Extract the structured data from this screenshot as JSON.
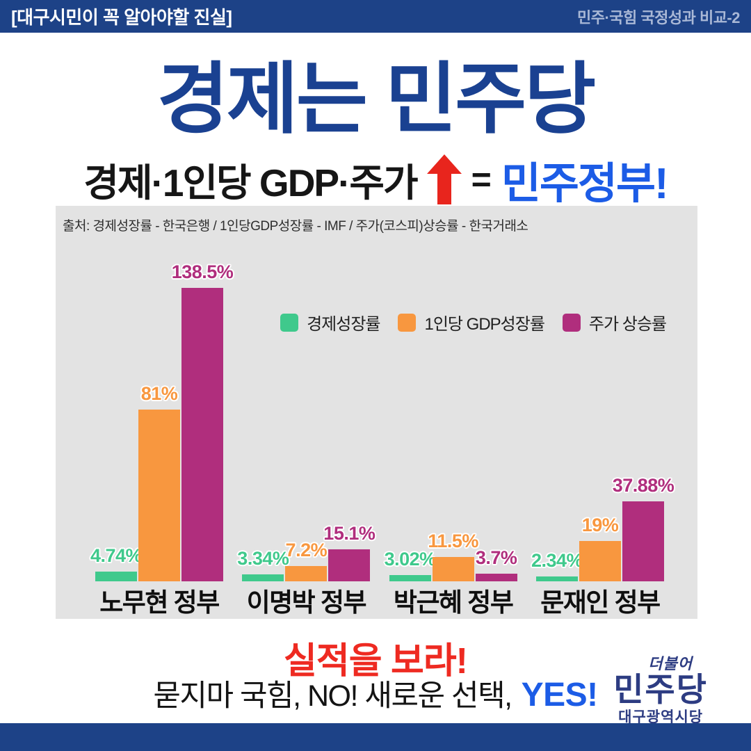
{
  "header": {
    "left": "[대구시민이 꼭 알아야할 진실]",
    "right": "민주·국힘 국정성과 비교-2"
  },
  "title": "경제는 민주당",
  "subtitle": {
    "prefix": "경제·1인당 GDP·주가",
    "arrow_icon": "red-up-arrow",
    "equals": "=",
    "suffix": "민주정부!"
  },
  "chart_data": {
    "type": "bar",
    "source_note": "출처: 경제성장률 - 한국은행 / 1인당GDP성장률 - IMF / 주가(코스피)상승률 - 한국거래소",
    "categories": [
      "노무현 정부",
      "이명박 정부",
      "박근혜 정부",
      "문재인 정부"
    ],
    "series": [
      {
        "name": "경제성장률",
        "color": "#3fc98c",
        "values": [
          4.74,
          3.34,
          3.02,
          2.34
        ],
        "labels": [
          "4.74%",
          "3.34%",
          "3.02%",
          "2.34%"
        ]
      },
      {
        "name": "1인당 GDP성장률",
        "color": "#f8973f",
        "values": [
          81,
          7.2,
          11.5,
          19
        ],
        "labels": [
          "81%",
          "7.2%",
          "11.5%",
          "19%"
        ]
      },
      {
        "name": "주가 상승률",
        "color": "#b02e7d",
        "values": [
          138.5,
          15.1,
          3.7,
          37.88
        ],
        "labels": [
          "138.5%",
          "15.1%",
          "3.7%",
          "37.88%"
        ]
      }
    ],
    "legend_position": "top-right",
    "ylim": [
      0,
      145
    ],
    "grid": false,
    "value_labels": true
  },
  "footer": {
    "headline": "실적을 보라!",
    "line_black": "묻지마 국힘, NO! 새로운 선택,",
    "line_blue": "YES!"
  },
  "logo": {
    "script": "더불어",
    "main": "민주당",
    "sub": "대구광역시당"
  },
  "colors": {
    "navy_bar": "#1d4287",
    "title_navy": "#1a4191",
    "bright_blue": "#1c5ce6",
    "red": "#ee2a21",
    "panel_gray": "#e3e3e3",
    "green": "#3fc98c",
    "orange": "#f8973f",
    "magenta": "#b02e7d",
    "logo_navy": "#2d3c82"
  }
}
